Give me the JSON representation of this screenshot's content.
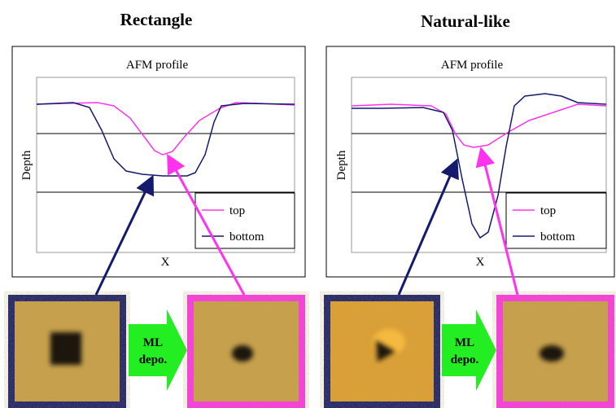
{
  "panels": [
    {
      "title": "Rectangle",
      "plot": {
        "title": "AFM profile",
        "ylabel": "Depth",
        "xlabel": "X",
        "legend": [
          "top",
          "bottom"
        ]
      },
      "arrow_label": [
        "ML",
        "depo."
      ]
    },
    {
      "title": "Natural-like",
      "plot": {
        "title": "AFM profile",
        "ylabel": "Depth",
        "xlabel": "X",
        "legend": [
          "top",
          "bottom"
        ]
      },
      "arrow_label": [
        "ML",
        "depo."
      ]
    }
  ]
}
